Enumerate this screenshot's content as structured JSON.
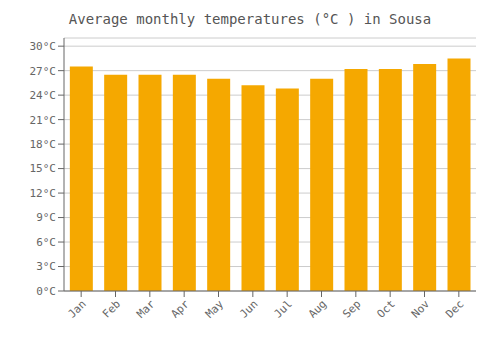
{
  "chart_data": {
    "type": "bar",
    "title": "Average monthly temperatures (°C ) in Sousa",
    "categories": [
      "Jan",
      "Feb",
      "Mar",
      "Apr",
      "May",
      "Jun",
      "Jul",
      "Aug",
      "Sep",
      "Oct",
      "Nov",
      "Dec"
    ],
    "values": [
      27.5,
      26.5,
      26.5,
      26.5,
      26.0,
      25.2,
      24.8,
      26.0,
      27.2,
      27.2,
      27.8,
      28.5
    ],
    "color": "#F5A800",
    "ylim": [
      0,
      31
    ],
    "yticks": [
      {
        "value": 0,
        "label": "0°C"
      },
      {
        "value": 3,
        "label": "3°C"
      },
      {
        "value": 6,
        "label": "6°C"
      },
      {
        "value": 9,
        "label": "9°C"
      },
      {
        "value": 12,
        "label": "12°C"
      },
      {
        "value": 15,
        "label": "15°C"
      },
      {
        "value": 18,
        "label": "18°C"
      },
      {
        "value": 21,
        "label": "21°C"
      },
      {
        "value": 24,
        "label": "24°C"
      },
      {
        "value": 27,
        "label": "27°C"
      },
      {
        "value": 30,
        "label": "30°C"
      }
    ],
    "grid": true
  }
}
